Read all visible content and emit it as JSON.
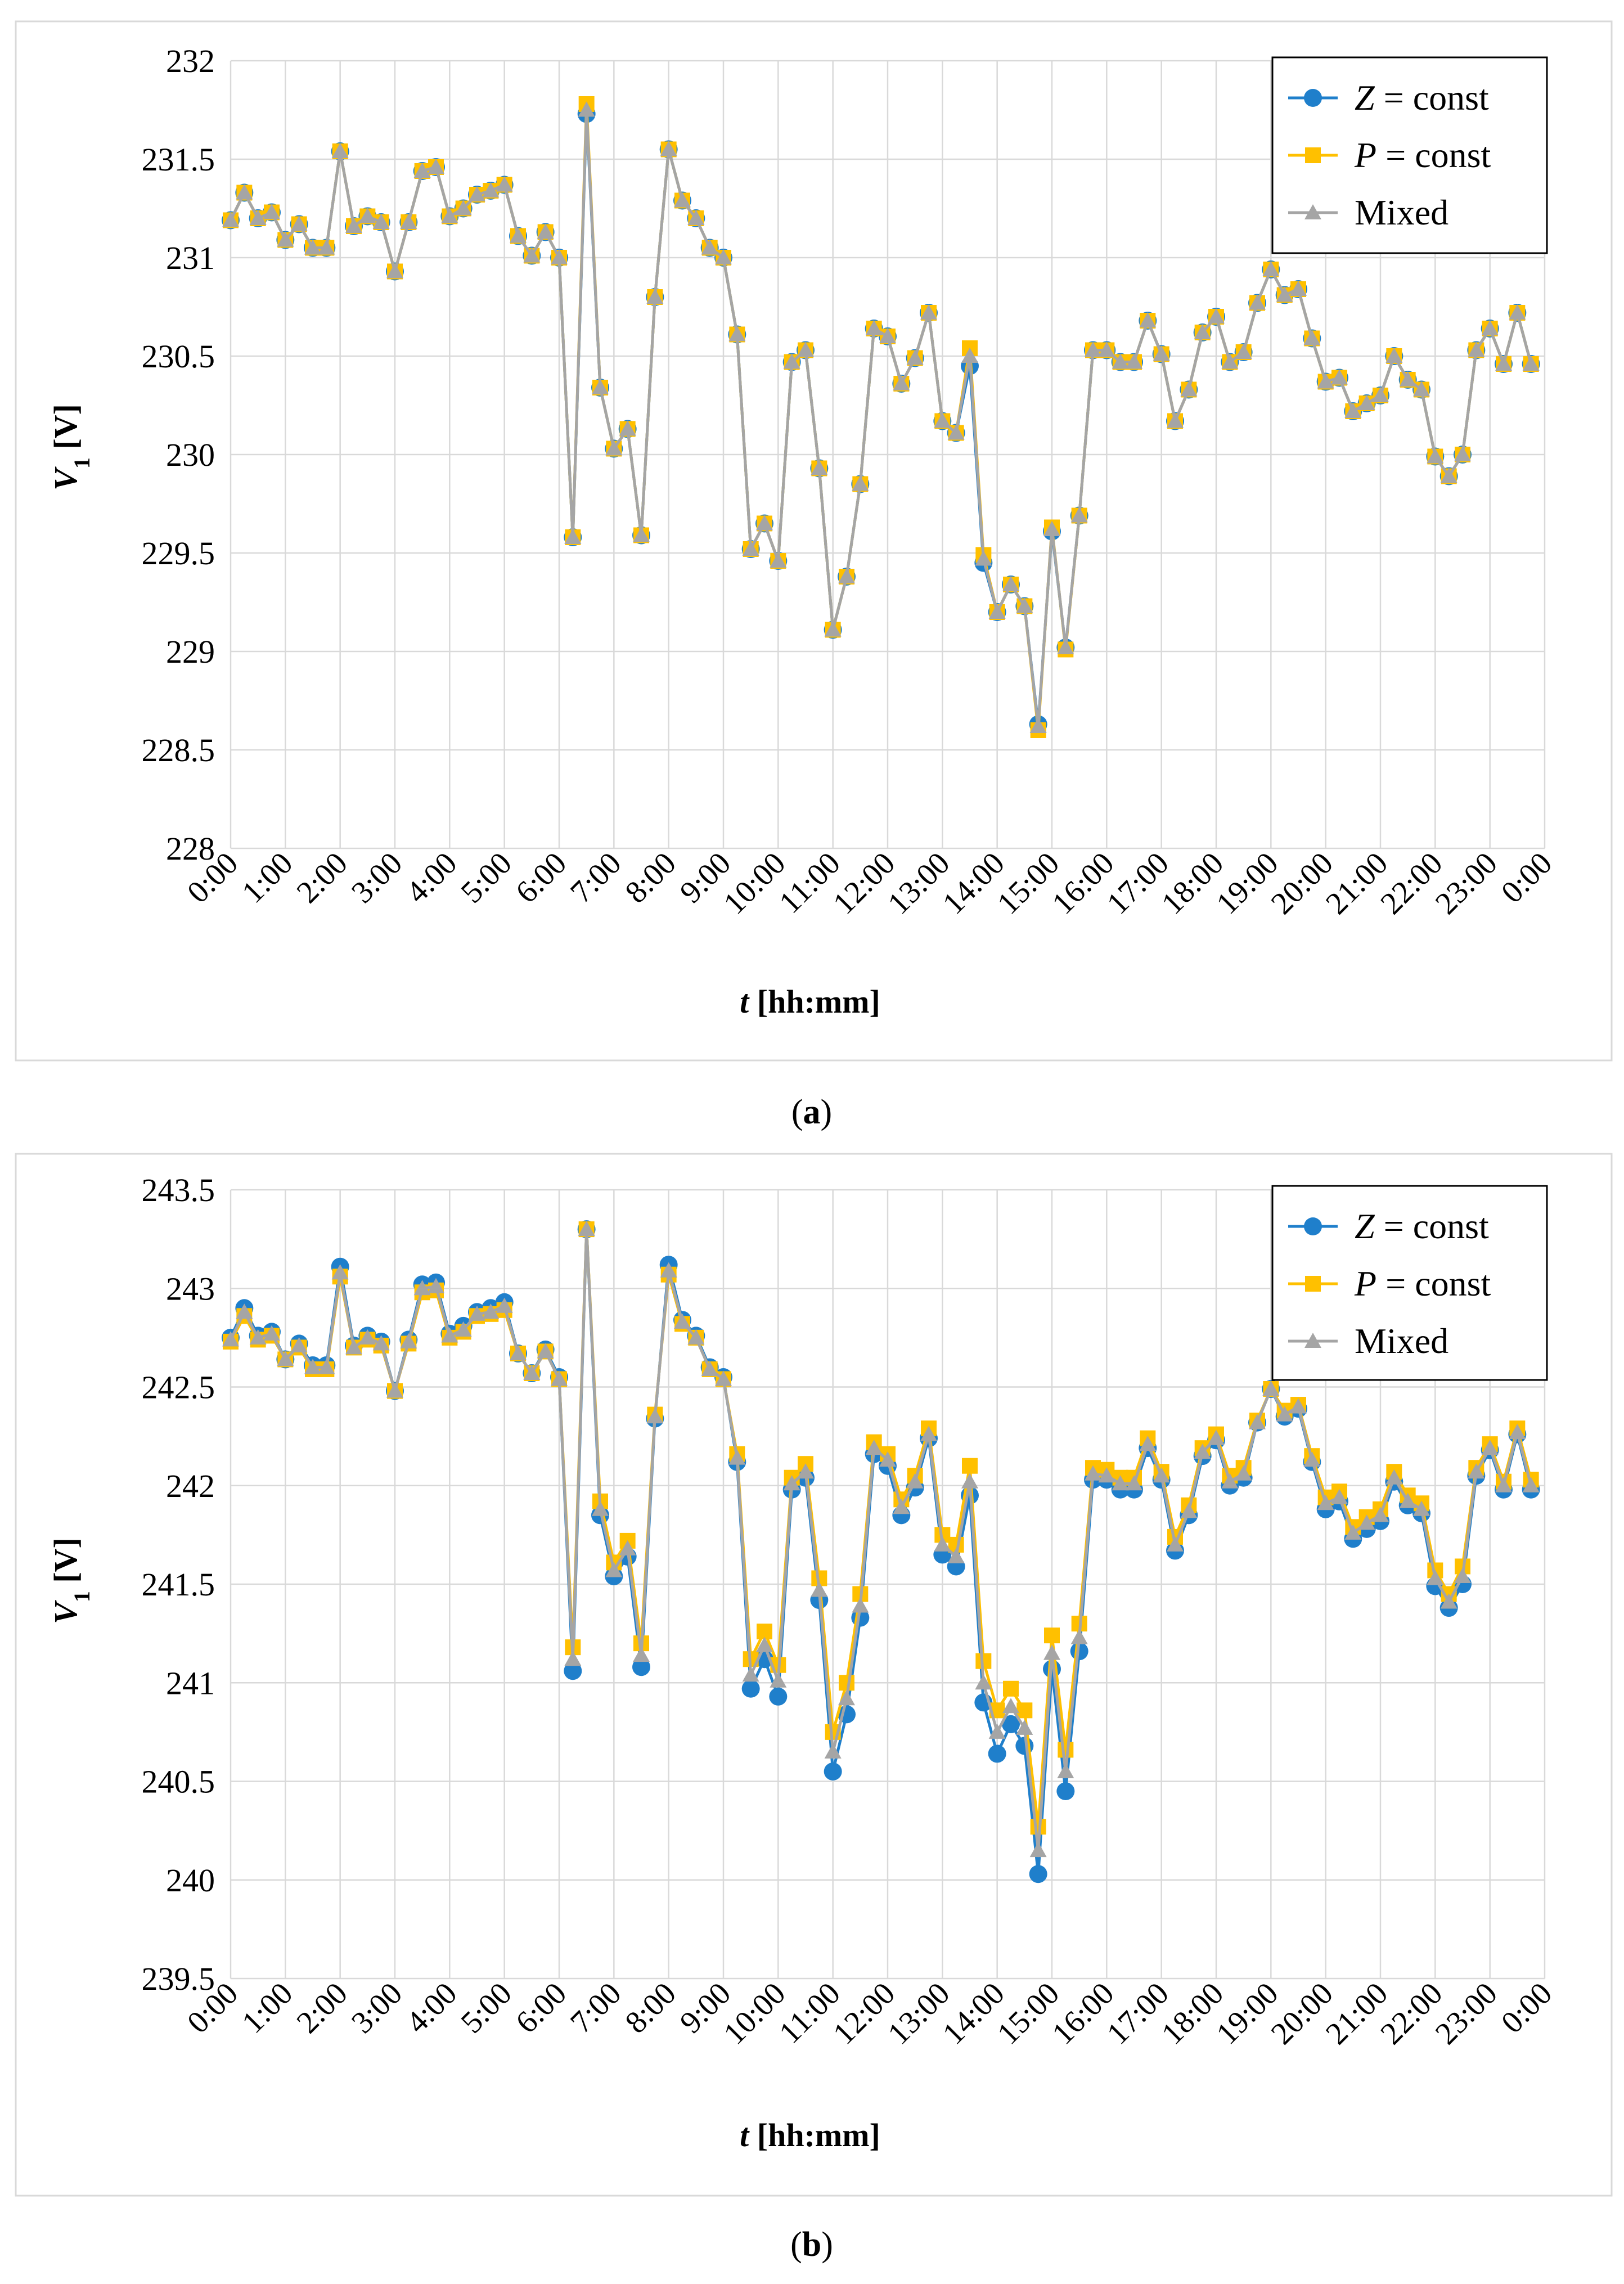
{
  "figure": {
    "panel_labels": [
      "(a)",
      "(b)"
    ],
    "colors": {
      "z": "#1F7FCB",
      "p": "#FFC000",
      "mixed": "#A5A5A5",
      "grid": "#D9D9D9",
      "border": "#D9D9D9"
    }
  },
  "chart_data": [
    {
      "type": "line",
      "panel": "a",
      "panel_label": "(a)",
      "xlabel": "t [hh:mm]",
      "ylabel": "V1 [V]",
      "ylabel_main": "V",
      "ylabel_sub": "1",
      "ylabel_unit": " [V]",
      "ylim": [
        228,
        232
      ],
      "ytick_labels": [
        "228",
        "228.5",
        "229",
        "229.5",
        "230",
        "230.5",
        "231",
        "231.5",
        "232"
      ],
      "ytick_values": [
        228,
        228.5,
        229,
        229.5,
        230,
        230.5,
        231,
        231.5,
        232
      ],
      "xlim": [
        0,
        96
      ],
      "xtick_labels": [
        "0:00",
        "1:00",
        "2:00",
        "3:00",
        "4:00",
        "5:00",
        "6:00",
        "7:00",
        "8:00",
        "9:00",
        "10:00",
        "11:00",
        "12:00",
        "13:00",
        "14:00",
        "15:00",
        "16:00",
        "17:00",
        "18:00",
        "19:00",
        "20:00",
        "21:00",
        "22:00",
        "23:00",
        "0:00"
      ],
      "legend": [
        {
          "key": "z",
          "var": "Z",
          "rest": " = const"
        },
        {
          "key": "p",
          "var": "P",
          "rest": " = const"
        },
        {
          "key": "mixed",
          "var": "",
          "rest": "Mixed"
        }
      ],
      "legend_position": "top-right",
      "series": [
        {
          "name": "Z = const",
          "key": "z",
          "marker": "circle",
          "values": [
            231.19,
            231.33,
            231.2,
            231.23,
            231.09,
            231.17,
            231.05,
            231.05,
            231.54,
            231.16,
            231.21,
            231.18,
            230.93,
            231.18,
            231.44,
            231.46,
            231.21,
            231.25,
            231.32,
            231.34,
            231.37,
            231.11,
            231.01,
            231.13,
            231.0,
            229.58,
            231.73,
            230.34,
            230.03,
            230.13,
            229.59,
            230.8,
            231.55,
            231.29,
            231.2,
            231.05,
            231.0,
            230.61,
            229.52,
            229.65,
            229.46,
            230.47,
            230.53,
            229.93,
            229.11,
            229.38,
            229.85,
            230.64,
            230.6,
            230.36,
            230.49,
            230.72,
            230.17,
            230.11,
            230.45,
            229.45,
            229.2,
            229.34,
            229.23,
            228.63,
            229.61,
            229.02,
            229.69,
            230.53,
            230.53,
            230.47,
            230.47,
            230.68,
            230.51,
            230.17,
            230.33,
            230.62,
            230.7,
            230.47,
            230.52,
            230.77,
            230.94,
            230.81,
            230.84,
            230.59,
            230.37,
            230.39,
            230.22,
            230.26,
            230.3,
            230.5,
            230.38,
            230.33,
            229.99,
            229.89,
            230.0,
            230.53,
            230.64,
            230.46,
            230.72,
            230.46
          ]
        },
        {
          "name": "P = const",
          "key": "p",
          "marker": "square",
          "values": [
            231.19,
            231.33,
            231.2,
            231.23,
            231.09,
            231.17,
            231.05,
            231.05,
            231.54,
            231.16,
            231.21,
            231.18,
            230.93,
            231.18,
            231.44,
            231.46,
            231.21,
            231.25,
            231.32,
            231.34,
            231.37,
            231.11,
            231.01,
            231.13,
            231.0,
            229.58,
            231.78,
            230.34,
            230.03,
            230.13,
            229.59,
            230.8,
            231.55,
            231.29,
            231.2,
            231.05,
            231.0,
            230.61,
            229.52,
            229.65,
            229.46,
            230.47,
            230.53,
            229.93,
            229.11,
            229.38,
            229.85,
            230.64,
            230.6,
            230.36,
            230.49,
            230.72,
            230.17,
            230.11,
            230.54,
            229.49,
            229.2,
            229.34,
            229.23,
            228.6,
            229.63,
            229.01,
            229.69,
            230.53,
            230.53,
            230.47,
            230.47,
            230.68,
            230.51,
            230.17,
            230.33,
            230.62,
            230.7,
            230.47,
            230.52,
            230.77,
            230.94,
            230.81,
            230.84,
            230.59,
            230.37,
            230.39,
            230.22,
            230.26,
            230.3,
            230.5,
            230.38,
            230.33,
            229.99,
            229.89,
            230.0,
            230.53,
            230.64,
            230.46,
            230.72,
            230.46
          ]
        },
        {
          "name": "Mixed",
          "key": "mixed",
          "marker": "triangle",
          "values": [
            231.19,
            231.33,
            231.2,
            231.23,
            231.09,
            231.17,
            231.05,
            231.05,
            231.54,
            231.16,
            231.21,
            231.18,
            230.93,
            231.18,
            231.44,
            231.46,
            231.21,
            231.25,
            231.32,
            231.34,
            231.37,
            231.11,
            231.01,
            231.13,
            231.0,
            229.58,
            231.75,
            230.34,
            230.03,
            230.13,
            229.59,
            230.8,
            231.55,
            231.29,
            231.2,
            231.05,
            231.0,
            230.61,
            229.52,
            229.65,
            229.46,
            230.47,
            230.53,
            229.93,
            229.11,
            229.38,
            229.85,
            230.64,
            230.6,
            230.36,
            230.49,
            230.72,
            230.17,
            230.11,
            230.5,
            229.47,
            229.2,
            229.34,
            229.23,
            228.62,
            229.62,
            229.02,
            229.69,
            230.53,
            230.53,
            230.47,
            230.47,
            230.68,
            230.51,
            230.17,
            230.33,
            230.62,
            230.7,
            230.47,
            230.52,
            230.77,
            230.94,
            230.81,
            230.84,
            230.59,
            230.37,
            230.39,
            230.22,
            230.26,
            230.3,
            230.5,
            230.38,
            230.33,
            229.99,
            229.89,
            230.0,
            230.53,
            230.64,
            230.46,
            230.72,
            230.46
          ]
        }
      ]
    },
    {
      "type": "line",
      "panel": "b",
      "panel_label": "(b)",
      "xlabel": "t [hh:mm]",
      "ylabel": "V1 [V]",
      "ylabel_main": "V",
      "ylabel_sub": "1",
      "ylabel_unit": " [V]",
      "ylim": [
        239.5,
        243.5
      ],
      "ytick_labels": [
        "239.5",
        "240",
        "240.5",
        "241",
        "241.5",
        "242",
        "242.5",
        "243",
        "243.5"
      ],
      "ytick_values": [
        239.5,
        240,
        240.5,
        241,
        241.5,
        242,
        242.5,
        243,
        243.5
      ],
      "xlim": [
        0,
        96
      ],
      "xtick_labels": [
        "0:00",
        "1:00",
        "2:00",
        "3:00",
        "4:00",
        "5:00",
        "6:00",
        "7:00",
        "8:00",
        "9:00",
        "10:00",
        "11:00",
        "12:00",
        "13:00",
        "14:00",
        "15:00",
        "16:00",
        "17:00",
        "18:00",
        "19:00",
        "20:00",
        "21:00",
        "22:00",
        "23:00",
        "0:00"
      ],
      "legend": [
        {
          "key": "z",
          "var": "Z",
          "rest": " = const"
        },
        {
          "key": "p",
          "var": "P",
          "rest": " = const"
        },
        {
          "key": "mixed",
          "var": "",
          "rest": "Mixed"
        }
      ],
      "legend_position": "top-right",
      "series": [
        {
          "name": "Z = const",
          "key": "z",
          "marker": "circle",
          "values": [
            242.75,
            242.9,
            242.76,
            242.78,
            242.64,
            242.72,
            242.61,
            242.61,
            243.11,
            242.71,
            242.76,
            242.73,
            242.48,
            242.74,
            243.02,
            243.03,
            242.77,
            242.81,
            242.88,
            242.9,
            242.93,
            242.67,
            242.57,
            242.69,
            242.55,
            241.06,
            243.3,
            241.85,
            241.54,
            241.64,
            241.08,
            242.34,
            243.12,
            242.84,
            242.76,
            242.6,
            242.55,
            242.12,
            240.97,
            241.12,
            240.93,
            241.98,
            242.04,
            241.42,
            240.55,
            240.84,
            241.33,
            242.16,
            242.1,
            241.85,
            241.99,
            242.24,
            241.65,
            241.59,
            241.95,
            240.9,
            240.64,
            240.79,
            240.68,
            240.03,
            241.07,
            240.45,
            241.16,
            242.03,
            242.03,
            241.98,
            241.98,
            242.19,
            242.03,
            241.67,
            241.85,
            242.15,
            242.23,
            242.0,
            242.04,
            242.32,
            242.49,
            242.35,
            242.39,
            242.12,
            241.88,
            241.92,
            241.73,
            241.78,
            241.82,
            242.02,
            241.9,
            241.86,
            241.49,
            241.38,
            241.5,
            242.05,
            242.18,
            241.98,
            242.26,
            241.98
          ]
        },
        {
          "name": "P = const",
          "key": "p",
          "marker": "square",
          "values": [
            242.73,
            242.86,
            242.74,
            242.76,
            242.64,
            242.7,
            242.59,
            242.59,
            243.06,
            242.7,
            242.74,
            242.71,
            242.48,
            242.72,
            242.98,
            242.99,
            242.75,
            242.78,
            242.86,
            242.87,
            242.89,
            242.67,
            242.57,
            242.68,
            242.54,
            241.18,
            243.3,
            241.92,
            241.61,
            241.72,
            241.2,
            242.36,
            243.07,
            242.82,
            242.75,
            242.59,
            242.54,
            242.16,
            241.12,
            241.26,
            241.09,
            242.04,
            242.11,
            241.53,
            240.75,
            241.0,
            241.45,
            242.22,
            242.16,
            241.93,
            242.05,
            242.29,
            241.75,
            241.7,
            242.1,
            241.11,
            240.86,
            240.97,
            240.86,
            240.27,
            241.24,
            240.66,
            241.3,
            242.09,
            242.08,
            242.04,
            242.04,
            242.24,
            242.07,
            241.74,
            241.9,
            242.19,
            242.26,
            242.05,
            242.09,
            242.33,
            242.49,
            242.38,
            242.41,
            242.15,
            241.94,
            241.97,
            241.79,
            241.84,
            241.88,
            242.07,
            241.95,
            241.91,
            241.57,
            241.45,
            241.59,
            242.09,
            242.21,
            242.02,
            242.29,
            242.03
          ]
        },
        {
          "name": "Mixed",
          "key": "mixed",
          "marker": "triangle",
          "values": [
            242.74,
            242.88,
            242.75,
            242.77,
            242.64,
            242.71,
            242.6,
            242.6,
            243.08,
            242.7,
            242.75,
            242.72,
            242.48,
            242.73,
            243.0,
            243.01,
            242.76,
            242.79,
            242.87,
            242.88,
            242.91,
            242.67,
            242.57,
            242.68,
            242.54,
            241.12,
            243.3,
            241.88,
            241.57,
            241.68,
            241.14,
            242.35,
            243.09,
            242.83,
            242.75,
            242.59,
            242.54,
            242.14,
            241.04,
            241.19,
            241.01,
            242.01,
            242.07,
            241.47,
            240.65,
            240.92,
            241.39,
            242.19,
            242.13,
            241.89,
            242.02,
            242.26,
            241.7,
            241.64,
            242.02,
            241.0,
            240.75,
            240.88,
            240.77,
            240.15,
            241.15,
            240.55,
            241.23,
            242.06,
            242.05,
            242.01,
            242.01,
            242.21,
            242.05,
            241.7,
            241.87,
            242.17,
            242.24,
            242.02,
            242.06,
            242.32,
            242.49,
            242.36,
            242.4,
            242.13,
            241.91,
            241.94,
            241.76,
            241.81,
            241.85,
            242.04,
            241.92,
            241.88,
            241.53,
            241.41,
            241.54,
            242.07,
            242.19,
            242.0,
            242.27,
            242.0
          ]
        }
      ]
    }
  ]
}
